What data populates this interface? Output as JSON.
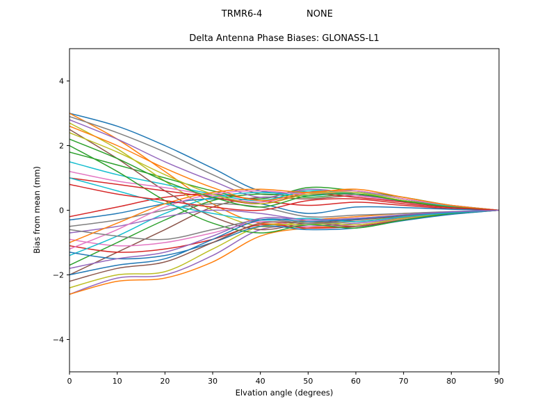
{
  "header": {
    "left": "TRMR6-4",
    "right": "NONE"
  },
  "chart_data": {
    "type": "line",
    "title": "Delta Antenna Phase Biases: GLONASS-L1",
    "xlabel": "Elvation angle (degrees)",
    "ylabel": "Bias from mean (mm)",
    "xlim": [
      0,
      90
    ],
    "ylim": [
      -5,
      5
    ],
    "xticks": [
      0,
      10,
      20,
      30,
      40,
      50,
      60,
      70,
      80,
      90
    ],
    "yticks": [
      -4,
      -2,
      0,
      2,
      4
    ],
    "grid": false,
    "legend": "none",
    "x": [
      0,
      10,
      20,
      30,
      40,
      50,
      60,
      70,
      80,
      90
    ],
    "palette": [
      "#1f77b4",
      "#ff7f0e",
      "#2ca02c",
      "#d62728",
      "#9467bd",
      "#8c564b",
      "#e377c2",
      "#7f7f7f",
      "#bcbd22",
      "#17becf"
    ],
    "series": [
      [
        3.0,
        2.6,
        2.0,
        1.3,
        0.6,
        0.55,
        0.5,
        0.3,
        0.15,
        0
      ],
      [
        3.0,
        2.2,
        1.2,
        0.2,
        -0.4,
        -0.3,
        -0.2,
        -0.1,
        -0.05,
        0
      ],
      [
        1.8,
        1.4,
        1.0,
        0.6,
        0.35,
        0.7,
        0.6,
        0.4,
        0.15,
        0
      ],
      [
        -0.2,
        0.1,
        0.4,
        0.5,
        0.3,
        0.15,
        0.25,
        0.15,
        0.05,
        0
      ],
      [
        -2.6,
        -2.1,
        -2.0,
        -1.4,
        -0.6,
        -0.5,
        -0.4,
        -0.25,
        -0.1,
        0
      ],
      [
        -2.0,
        -1.3,
        -0.6,
        0.1,
        0.4,
        0.35,
        0.45,
        0.3,
        0.1,
        0
      ],
      [
        -0.9,
        -1.1,
        -1.0,
        -0.7,
        -0.35,
        -0.5,
        -0.45,
        -0.28,
        -0.1,
        0
      ],
      [
        2.9,
        2.4,
        1.8,
        1.1,
        0.5,
        0.6,
        0.45,
        0.3,
        0.12,
        0
      ],
      [
        2.7,
        1.9,
        0.9,
        0.0,
        -0.5,
        -0.35,
        -0.45,
        -0.25,
        -0.1,
        0
      ],
      [
        1.5,
        1.1,
        0.8,
        0.5,
        0.3,
        0.6,
        0.5,
        0.3,
        0.1,
        0
      ],
      [
        -0.3,
        -0.1,
        0.2,
        0.35,
        0.2,
        -0.1,
        0.1,
        0.08,
        0.03,
        0
      ],
      [
        -2.6,
        -2.2,
        -2.1,
        -1.6,
        -0.8,
        -0.55,
        -0.5,
        -0.3,
        -0.12,
        0
      ],
      [
        -1.7,
        -1.0,
        -0.3,
        0.3,
        0.5,
        0.4,
        0.5,
        0.3,
        0.12,
        0
      ],
      [
        -1.1,
        -1.3,
        -1.2,
        -0.9,
        -0.45,
        -0.55,
        -0.5,
        -0.3,
        -0.12,
        0
      ],
      [
        2.8,
        2.2,
        1.5,
        0.9,
        0.4,
        0.65,
        0.5,
        0.25,
        0.1,
        0
      ],
      [
        2.5,
        1.6,
        0.6,
        -0.2,
        -0.6,
        -0.4,
        -0.5,
        -0.3,
        -0.12,
        0
      ],
      [
        1.2,
        0.9,
        0.7,
        0.45,
        0.25,
        0.55,
        0.45,
        0.28,
        0.1,
        0
      ],
      [
        -0.5,
        -0.3,
        0.0,
        0.2,
        0.1,
        -0.2,
        -0.15,
        -0.1,
        -0.04,
        0
      ],
      [
        -2.4,
        -2.0,
        -1.9,
        -1.2,
        -0.5,
        -0.45,
        -0.35,
        -0.2,
        -0.08,
        0
      ],
      [
        -1.4,
        -0.8,
        -0.1,
        0.4,
        0.55,
        0.45,
        0.55,
        0.35,
        0.12,
        0
      ],
      [
        -1.3,
        -1.5,
        -1.4,
        -1.0,
        -0.5,
        -0.6,
        -0.55,
        -0.32,
        -0.13,
        0
      ],
      [
        2.6,
        2.0,
        1.3,
        0.7,
        0.3,
        0.55,
        0.6,
        0.35,
        0.15,
        0
      ],
      [
        2.0,
        1.2,
        0.3,
        -0.4,
        -0.7,
        -0.45,
        -0.55,
        -0.3,
        -0.1,
        0
      ],
      [
        1.0,
        0.8,
        0.6,
        0.4,
        0.2,
        0.5,
        0.4,
        0.25,
        0.1,
        0
      ],
      [
        -0.7,
        -0.5,
        -0.2,
        0.0,
        -0.1,
        -0.3,
        -0.25,
        -0.15,
        -0.05,
        0
      ],
      [
        -2.2,
        -1.8,
        -1.6,
        -1.0,
        -0.4,
        -0.4,
        -0.3,
        -0.18,
        -0.07,
        0
      ],
      [
        -1.2,
        -0.6,
        0.1,
        0.5,
        0.6,
        0.5,
        0.6,
        0.35,
        0.15,
        0
      ],
      [
        -0.6,
        -0.8,
        -0.9,
        -0.6,
        -0.3,
        -0.4,
        -0.35,
        -0.22,
        -0.08,
        0
      ],
      [
        2.4,
        1.8,
        1.1,
        0.5,
        0.2,
        0.5,
        0.55,
        0.3,
        0.1,
        0
      ],
      [
        1.0,
        0.6,
        0.2,
        -0.1,
        -0.3,
        -0.25,
        -0.35,
        -0.2,
        -0.08,
        0
      ],
      [
        -2.0,
        -1.7,
        -1.5,
        -0.9,
        -0.3,
        -0.35,
        -0.28,
        -0.15,
        -0.06,
        0
      ],
      [
        -1.0,
        -0.4,
        0.2,
        0.55,
        0.65,
        0.55,
        0.65,
        0.4,
        0.15,
        0
      ],
      [
        2.2,
        1.6,
        0.9,
        0.4,
        0.1,
        0.45,
        0.5,
        0.28,
        0.1,
        0
      ],
      [
        0.8,
        0.5,
        0.3,
        0.1,
        0.0,
        0.3,
        0.35,
        0.2,
        0.08,
        0
      ],
      [
        -1.8,
        -1.5,
        -1.3,
        -0.8,
        -0.25,
        -0.3,
        -0.25,
        -0.14,
        -0.05,
        0
      ]
    ]
  }
}
